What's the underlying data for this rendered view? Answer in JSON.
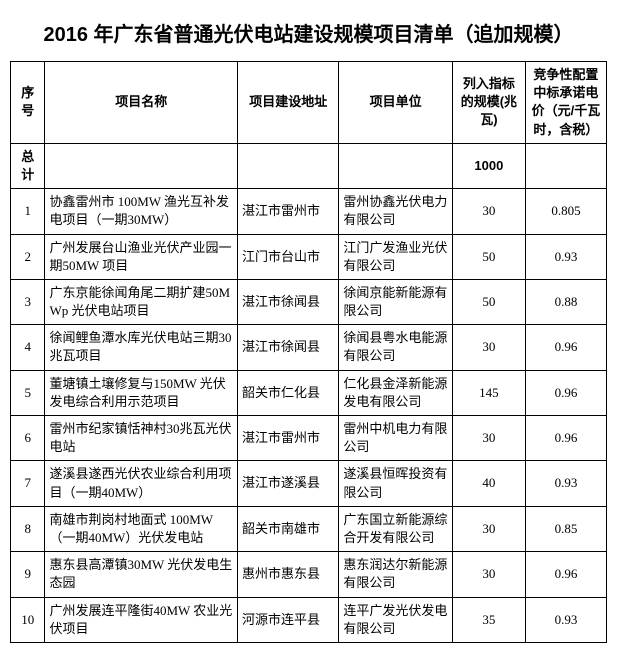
{
  "title": "2016 年广东省普通光伏电站建设规模项目清单（追加规模）",
  "headers": {
    "idx": "序号",
    "name": "项目名称",
    "loc": "项目建设地址",
    "unit": "项目单位",
    "scale": "列入指标的规模(兆瓦)",
    "price": "竞争性配置中标承诺电价（元/千瓦时，含税）"
  },
  "total": {
    "label": "总计",
    "scale": "1000"
  },
  "rows": [
    {
      "idx": "1",
      "name": "协鑫雷州市 100MW 渔光互补发电项目（一期30MW）",
      "loc": "湛江市雷州市",
      "unit": "雷州协鑫光伏电力有限公司",
      "scale": "30",
      "price": "0.805"
    },
    {
      "idx": "2",
      "name": "广州发展台山渔业光伏产业园一期50MW 项目",
      "loc": "江门市台山市",
      "unit": "江门广发渔业光伏有限公司",
      "scale": "50",
      "price": "0.93"
    },
    {
      "idx": "3",
      "name": "广东京能徐闻角尾二期扩建50MWp 光伏电站项目",
      "loc": "湛江市徐闻县",
      "unit": "徐闻京能新能源有限公司",
      "scale": "50",
      "price": "0.88"
    },
    {
      "idx": "4",
      "name": "徐闻鲤鱼潭水库光伏电站三期30兆瓦项目",
      "loc": "湛江市徐闻县",
      "unit": "徐闻县粤水电能源有限公司",
      "scale": "30",
      "price": "0.96"
    },
    {
      "idx": "5",
      "name": "董塘镇土壤修复与150MW 光伏发电综合利用示范项目",
      "loc": "韶关市仁化县",
      "unit": "仁化县金泽新能源发电有限公司",
      "scale": "145",
      "price": "0.96"
    },
    {
      "idx": "6",
      "name": "雷州市纪家镇恬神村30兆瓦光伏电站",
      "loc": "湛江市雷州市",
      "unit": "雷州中机电力有限公司",
      "scale": "30",
      "price": "0.96"
    },
    {
      "idx": "7",
      "name": "遂溪县遂西光伏农业综合利用项目（一期40MW）",
      "loc": "湛江市遂溪县",
      "unit": "遂溪县恒晖投资有限公司",
      "scale": "40",
      "price": "0.93"
    },
    {
      "idx": "8",
      "name": "南雄市荆岗村地面式 100MW（一期40MW）光伏发电站",
      "loc": "韶关市南雄市",
      "unit": "广东国立新能源综合开发有限公司",
      "scale": "30",
      "price": "0.85"
    },
    {
      "idx": "9",
      "name": "惠东县高潭镇30MW 光伏发电生态园",
      "loc": "惠州市惠东县",
      "unit": "惠东润达尔新能源有限公司",
      "scale": "30",
      "price": "0.96"
    },
    {
      "idx": "10",
      "name": "广州发展连平隆街40MW 农业光伏项目",
      "loc": "河源市连平县",
      "unit": "连平广发光伏发电有限公司",
      "scale": "35",
      "price": "0.93"
    }
  ]
}
